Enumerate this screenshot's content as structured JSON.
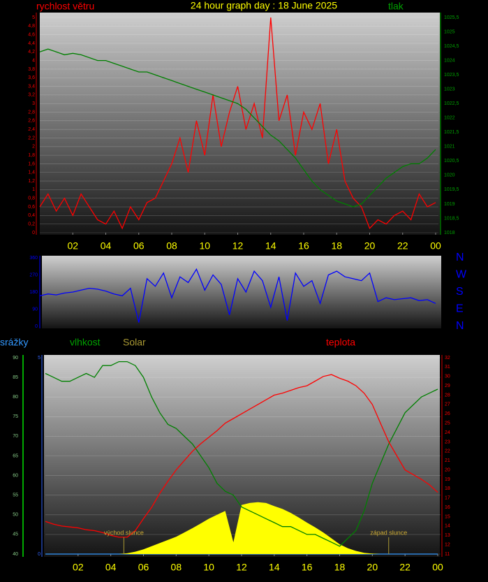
{
  "chart_data": [
    {
      "type": "line",
      "title": "24 hour graph day : 18 June 2025",
      "x": [
        0,
        0.5,
        1,
        1.5,
        2,
        2.5,
        3,
        3.5,
        4,
        4.5,
        5,
        5.5,
        6,
        6.5,
        7,
        7.5,
        8,
        8.5,
        9,
        9.5,
        10,
        10.5,
        11,
        11.5,
        12,
        12.5,
        13,
        13.5,
        14,
        14.5,
        15,
        15.5,
        16,
        16.5,
        17,
        17.5,
        18,
        18.5,
        19,
        19.5,
        20,
        20.5,
        21,
        21.5,
        22,
        22.5,
        23,
        23.5,
        24
      ],
      "xlim": [
        0,
        24
      ],
      "xticks": [
        {
          "value": 2,
          "label": "02"
        },
        {
          "value": 4,
          "label": "04"
        },
        {
          "value": 6,
          "label": "06"
        },
        {
          "value": 8,
          "label": "08"
        },
        10,
        12,
        14,
        16,
        18,
        20,
        22,
        {
          "value": 24,
          "label": "00"
        }
      ],
      "ylim": [
        0,
        5
      ],
      "yticks": [
        0,
        {
          "value": 0.2,
          "label": "0,2"
        },
        {
          "value": 0.4,
          "label": "0,4"
        },
        {
          "value": 0.6,
          "label": "0,6"
        },
        {
          "value": 0.8,
          "label": "0,8"
        },
        1,
        {
          "value": 1.2,
          "label": "1,2"
        },
        {
          "value": 1.4,
          "label": "1,4"
        },
        {
          "value": 1.6,
          "label": "1,6"
        },
        {
          "value": 1.8,
          "label": "1,8"
        },
        2,
        {
          "value": 2.2,
          "label": "2,2"
        },
        {
          "value": 2.4,
          "label": "2,4"
        },
        {
          "value": 2.6,
          "label": "2,6"
        },
        {
          "value": 2.8,
          "label": "2,8"
        },
        3,
        {
          "value": 3.2,
          "label": "3,2"
        },
        {
          "value": 3.4,
          "label": "3,4"
        },
        {
          "value": 3.6,
          "label": "3,6"
        },
        {
          "value": 3.8,
          "label": "3,8"
        },
        4,
        {
          "value": 4.2,
          "label": "4,2"
        },
        {
          "value": 4.4,
          "label": "4,4"
        },
        {
          "value": 4.6,
          "label": "4,6"
        },
        {
          "value": 4.8,
          "label": "4,8"
        },
        5
      ],
      "y2lim": [
        1018,
        1025.5
      ],
      "y2ticks": [
        1018,
        {
          "value": 1018.5,
          "label": "1018,5"
        },
        1019,
        {
          "value": 1019.5,
          "label": "1019,5"
        },
        1020,
        {
          "value": 1020.5,
          "label": "1020,5"
        },
        1021,
        {
          "value": 1021.5,
          "label": "1021,5"
        },
        1022,
        {
          "value": 1022.5,
          "label": "1022,5"
        },
        1023,
        {
          "value": 1023.5,
          "label": "1023,5"
        },
        1024,
        {
          "value": 1024.5,
          "label": "1024,5"
        },
        1025,
        {
          "value": 1025.5,
          "label": "1025,5"
        }
      ],
      "grid": true,
      "series": [
        {
          "name": "rychlost větru",
          "color": "#ff0000",
          "values": [
            0.6,
            0.9,
            0.5,
            0.8,
            0.4,
            0.9,
            0.6,
            0.3,
            0.2,
            0.5,
            0.1,
            0.6,
            0.3,
            0.7,
            0.8,
            1.2,
            1.6,
            2.2,
            1.4,
            2.6,
            1.8,
            3.2,
            2.0,
            2.8,
            3.4,
            2.4,
            3.0,
            2.2,
            5.0,
            2.6,
            3.2,
            1.8,
            2.8,
            2.4,
            3.0,
            1.6,
            2.4,
            1.2,
            0.8,
            0.6,
            0.1,
            0.3,
            0.2,
            0.4,
            0.5,
            0.3,
            0.9,
            0.6,
            0.7
          ]
        },
        {
          "name": "tlak",
          "color": "#008000",
          "axis": "y2",
          "values": [
            1024.3,
            1024.4,
            1024.3,
            1024.2,
            1024.25,
            1024.2,
            1024.1,
            1024.0,
            1024.0,
            1023.9,
            1023.8,
            1023.7,
            1023.6,
            1023.6,
            1023.5,
            1023.4,
            1023.3,
            1023.2,
            1023.1,
            1023.0,
            1022.9,
            1022.8,
            1022.7,
            1022.6,
            1022.5,
            1022.3,
            1022.0,
            1021.7,
            1021.4,
            1021.2,
            1020.9,
            1020.6,
            1020.2,
            1019.8,
            1019.5,
            1019.3,
            1019.1,
            1019.0,
            1018.9,
            1019.0,
            1019.3,
            1019.6,
            1019.9,
            1020.1,
            1020.3,
            1020.4,
            1020.4,
            1020.6,
            1020.9
          ]
        }
      ]
    },
    {
      "type": "line",
      "x": [
        0,
        0.5,
        1,
        1.5,
        2,
        2.5,
        3,
        3.5,
        4,
        4.5,
        5,
        5.5,
        6,
        6.5,
        7,
        7.5,
        8,
        8.5,
        9,
        9.5,
        10,
        10.5,
        11,
        11.5,
        12,
        12.5,
        13,
        13.5,
        14,
        14.5,
        15,
        15.5,
        16,
        16.5,
        17,
        17.5,
        18,
        18.5,
        19,
        19.5,
        20,
        20.5,
        21,
        21.5,
        22,
        22.5,
        23,
        23.5,
        24
      ],
      "xlim": [
        0,
        24
      ],
      "ylim": [
        0,
        360
      ],
      "yticks": [
        0,
        90,
        180,
        270,
        360
      ],
      "y2lim": [
        0,
        360
      ],
      "y2ticks": [
        {
          "value": 360,
          "label": "N"
        },
        {
          "value": 270,
          "label": "W"
        },
        {
          "value": 180,
          "label": "S"
        },
        {
          "value": 90,
          "label": "E"
        },
        {
          "value": 0,
          "label": "N"
        }
      ],
      "grid": false,
      "series": [
        {
          "color": "#0000ff",
          "values": [
            160,
            170,
            165,
            175,
            180,
            190,
            200,
            195,
            185,
            170,
            160,
            200,
            20,
            250,
            210,
            280,
            150,
            260,
            230,
            300,
            190,
            270,
            220,
            60,
            250,
            180,
            290,
            240,
            100,
            260,
            30,
            280,
            210,
            240,
            120,
            270,
            290,
            260,
            250,
            240,
            280,
            130,
            150,
            140,
            145,
            150,
            135,
            140,
            120
          ]
        }
      ]
    },
    {
      "type": "line",
      "x": [
        0,
        0.5,
        1,
        1.5,
        2,
        2.5,
        3,
        3.5,
        4,
        4.5,
        5,
        5.5,
        6,
        6.5,
        7,
        7.5,
        8,
        8.5,
        9,
        9.5,
        10,
        10.5,
        11,
        11.5,
        12,
        12.5,
        13,
        13.5,
        14,
        14.5,
        15,
        15.5,
        16,
        16.5,
        17,
        17.5,
        18,
        18.5,
        19,
        19.5,
        20,
        20.5,
        21,
        21.5,
        22,
        22.5,
        23,
        23.5,
        24
      ],
      "xlim": [
        0,
        24
      ],
      "xticks": [
        {
          "value": 2,
          "label": "02"
        },
        {
          "value": 4,
          "label": "04"
        },
        {
          "value": 6,
          "label": "06"
        },
        {
          "value": 8,
          "label": "08"
        },
        10,
        12,
        14,
        16,
        18,
        20,
        22,
        {
          "value": 24,
          "label": "00"
        }
      ],
      "ylim": [
        40,
        90
      ],
      "yticks": [
        40,
        45,
        50,
        55,
        60,
        65,
        70,
        75,
        80,
        85,
        90
      ],
      "y2lim": [
        11,
        32
      ],
      "y2ticks": [
        11,
        12,
        13,
        14,
        15,
        16,
        17,
        18,
        19,
        20,
        21,
        22,
        23,
        24,
        25,
        26,
        27,
        28,
        29,
        30,
        31,
        32
      ],
      "y3lim": [
        0,
        5
      ],
      "y3ticks": [
        0,
        5
      ],
      "grid": true,
      "series": [
        {
          "name": "srážky",
          "color": "#3399ff",
          "axis": "y3",
          "values": [
            0,
            0,
            0,
            0,
            0,
            0,
            0,
            0,
            0,
            0,
            0,
            0,
            0,
            0,
            0,
            0,
            0,
            0,
            0,
            0,
            0,
            0,
            0,
            0,
            0,
            0,
            0,
            0,
            0,
            0,
            0,
            0,
            0,
            0,
            0,
            0,
            0,
            0,
            0,
            0,
            0,
            0,
            0,
            0,
            0,
            0,
            0,
            0,
            0
          ]
        },
        {
          "name": "Solar",
          "color": "#ffff00",
          "type": "area",
          "values": [
            40,
            40,
            40,
            40,
            40,
            40,
            40,
            40,
            40,
            40,
            40.2,
            40.6,
            41.2,
            42.0,
            42.8,
            43.6,
            44.4,
            45.5,
            46.6,
            47.8,
            49.0,
            50.0,
            51.0,
            43.0,
            52.5,
            53.0,
            53.2,
            53.0,
            52.2,
            51.5,
            50.5,
            49.3,
            48.0,
            46.8,
            45.5,
            44.0,
            42.5,
            41.5,
            40.8,
            40.3,
            40.1,
            40,
            40,
            40,
            40,
            40,
            40,
            40,
            40
          ]
        },
        {
          "name": "vlhkost",
          "color": "#008000",
          "values": [
            86,
            85,
            84,
            84,
            85,
            86,
            85,
            88,
            88,
            89,
            89,
            88,
            85,
            80,
            76,
            73,
            72,
            70,
            68,
            65,
            62,
            58,
            56,
            55,
            52,
            51,
            50,
            49,
            48,
            47,
            47,
            46,
            45,
            45,
            44,
            43,
            42,
            44,
            46,
            51,
            58,
            63,
            68,
            72,
            76,
            78,
            80,
            81,
            82
          ]
        },
        {
          "name": "teplota",
          "color": "#ff0000",
          "axis": "y2",
          "values": [
            14.5,
            14.2,
            14.0,
            13.9,
            13.8,
            13.6,
            13.5,
            13.3,
            13.0,
            12.8,
            12.8,
            13.5,
            14.8,
            16.0,
            17.5,
            18.8,
            20.0,
            21.0,
            22.0,
            22.8,
            23.5,
            24.2,
            25.0,
            25.5,
            26.0,
            26.5,
            27.0,
            27.5,
            28.0,
            28.2,
            28.5,
            28.8,
            29.0,
            29.5,
            30.0,
            30.2,
            29.8,
            29.5,
            29.0,
            28.2,
            27.0,
            25.0,
            23.0,
            21.5,
            20.0,
            19.5,
            19.0,
            18.4,
            17.6
          ]
        }
      ],
      "annotations": [
        {
          "text": "východ slunce",
          "x": 4.8
        },
        {
          "text": "západ slunce",
          "x": 21
        }
      ]
    }
  ]
}
